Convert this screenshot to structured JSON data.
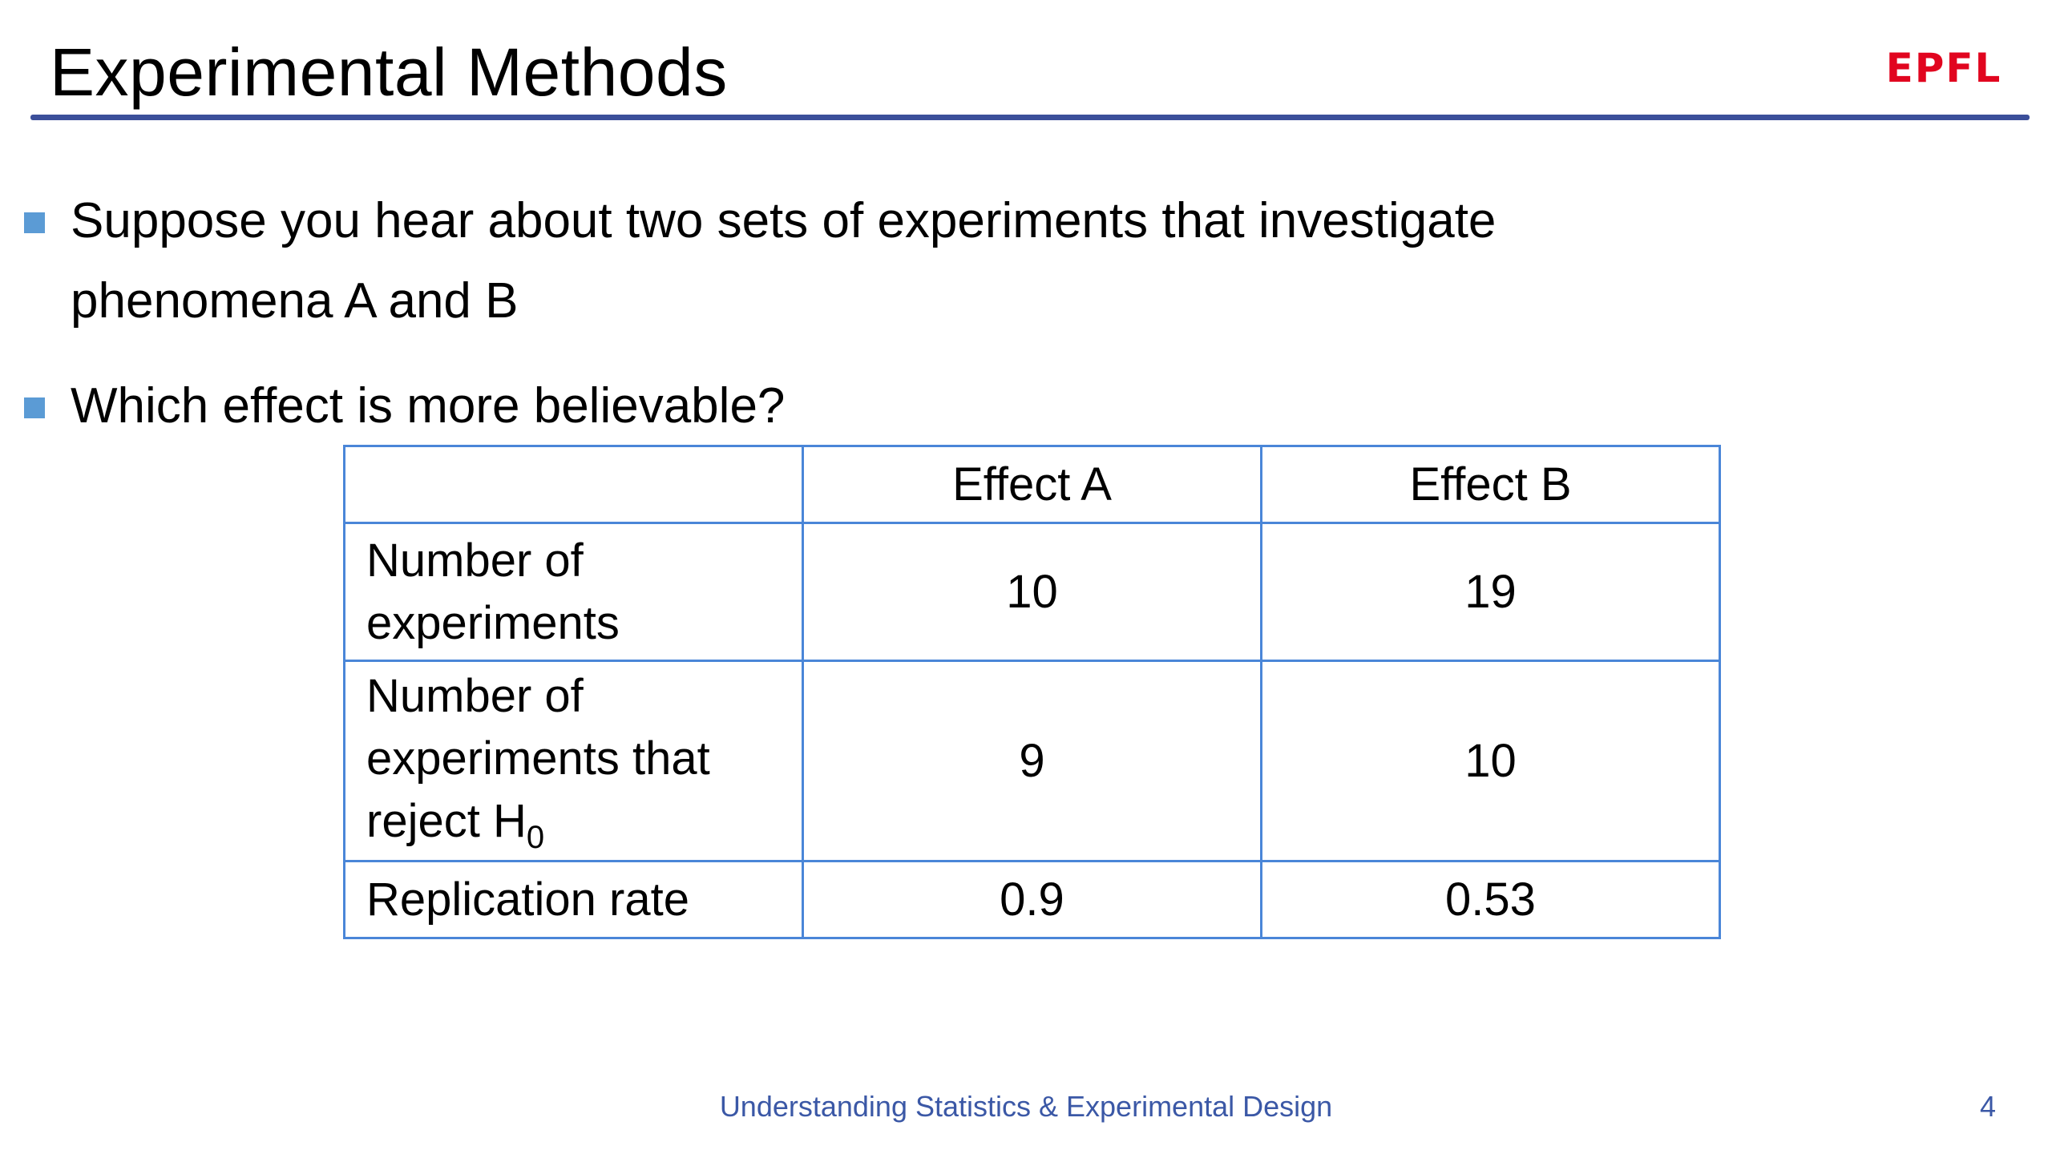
{
  "slide": {
    "title": "Experimental Methods",
    "logo_text": "EPFL",
    "accent_color": "#3b4f9a",
    "logo_color": "#e1051f"
  },
  "bullets": [
    "Suppose you hear about two sets of experiments that investigate",
    "phenomena A and B",
    "Which effect is more believable?"
  ],
  "table": {
    "columns": [
      "",
      "Effect A",
      "Effect B"
    ],
    "rows": [
      {
        "label_line1": "Number of",
        "label_line2": "experiments",
        "effect_a": "10",
        "effect_b": "19"
      },
      {
        "label_line1": "Number of",
        "label_line2": "experiments that",
        "label_line3_text": "reject H",
        "label_line3_sub": "0",
        "effect_a": "9",
        "effect_b": "10"
      },
      {
        "label": "Replication rate",
        "effect_a": "0.9",
        "effect_b": "0.53"
      }
    ],
    "border_color": "#4a86d8"
  },
  "footer": {
    "course": "Understanding Statistics & Experimental Design",
    "page": "4"
  }
}
